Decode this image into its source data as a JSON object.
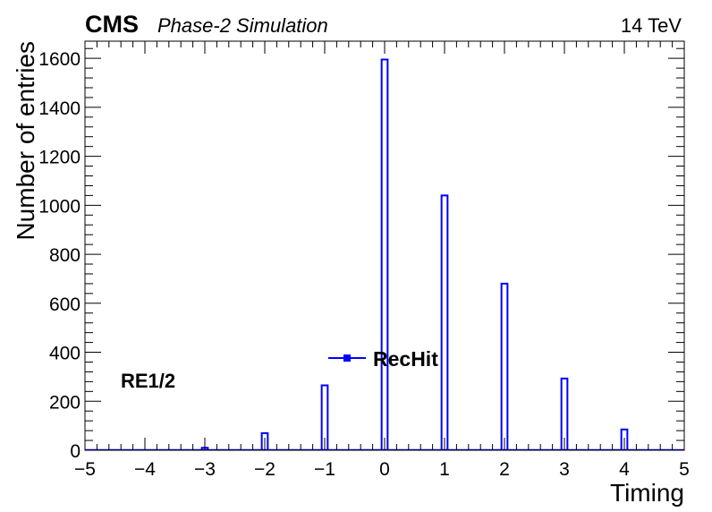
{
  "header": {
    "experiment": "CMS",
    "subtitle": "Phase-2 Simulation",
    "energy": "14 TeV"
  },
  "annotation": "RE1/2",
  "chart_data": {
    "type": "bar",
    "title": "",
    "xlabel": "Timing",
    "ylabel": "Number of entries",
    "xlim": [
      -5,
      5
    ],
    "ylim": [
      0,
      1670
    ],
    "xticks": [
      -5,
      -4,
      -3,
      -2,
      -1,
      0,
      1,
      2,
      3,
      4,
      5
    ],
    "xtick_labels": [
      "−5",
      "−4",
      "−3",
      "−2",
      "−1",
      "0",
      "1",
      "2",
      "3",
      "4",
      "5"
    ],
    "yticks": [
      0,
      200,
      400,
      600,
      800,
      1000,
      1200,
      1400,
      1600
    ],
    "ytick_labels": [
      "0",
      "200",
      "400",
      "600",
      "800",
      "1000",
      "1200",
      "1400",
      "1600"
    ],
    "grid": false,
    "legend": {
      "placement": "center",
      "entries": [
        "RecHit"
      ]
    },
    "bin_width": 0.1,
    "series": [
      {
        "name": "RecHit",
        "color": "#0000ff",
        "bins": [
          {
            "x": -3,
            "value": 10
          },
          {
            "x": -2,
            "value": 70
          },
          {
            "x": -1,
            "value": 265
          },
          {
            "x": 0,
            "value": 1595
          },
          {
            "x": 1,
            "value": 1040
          },
          {
            "x": 2,
            "value": 680
          },
          {
            "x": 3,
            "value": 293
          },
          {
            "x": 4,
            "value": 85
          }
        ]
      }
    ]
  }
}
